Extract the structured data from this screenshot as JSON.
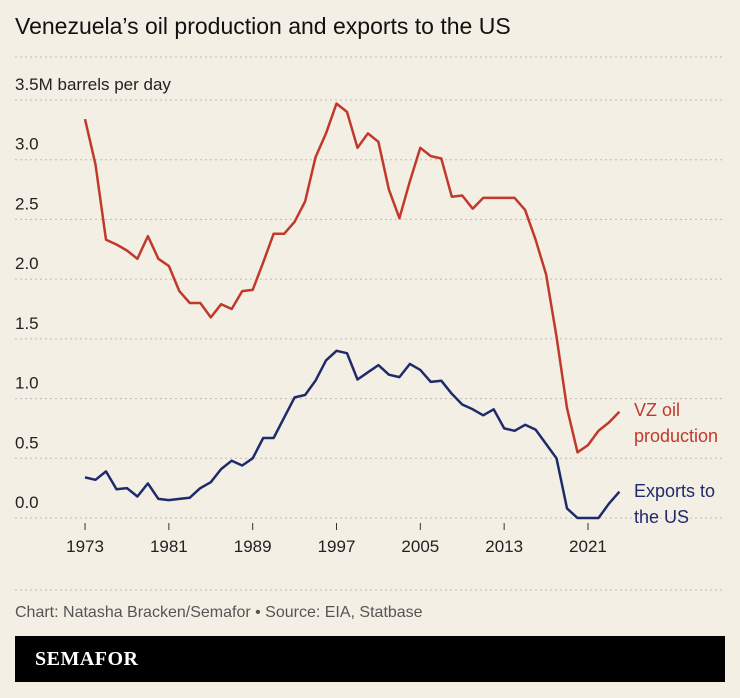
{
  "chart_data": {
    "type": "line",
    "title": "Venezuela’s oil production and exports to the US",
    "source": "Chart: Natasha Bracken/Semafor • Source: EIA, Statbase",
    "brand": "SEMAFOR",
    "x": [
      1973,
      1974,
      1975,
      1976,
      1977,
      1978,
      1979,
      1980,
      1981,
      1982,
      1983,
      1984,
      1985,
      1986,
      1987,
      1988,
      1989,
      1990,
      1991,
      1992,
      1993,
      1994,
      1995,
      1996,
      1997,
      1998,
      1999,
      2000,
      2001,
      2002,
      2003,
      2004,
      2005,
      2006,
      2007,
      2008,
      2009,
      2010,
      2011,
      2012,
      2013,
      2014,
      2015,
      2016,
      2017,
      2018,
      2019,
      2020,
      2021,
      2022,
      2023,
      2024
    ],
    "series": [
      {
        "name": "VZ oil production",
        "color": "#c0392b",
        "values": [
          3.34,
          2.96,
          2.33,
          2.29,
          2.24,
          2.17,
          2.36,
          2.17,
          2.11,
          1.9,
          1.8,
          1.8,
          1.68,
          1.79,
          1.75,
          1.9,
          1.91,
          2.14,
          2.38,
          2.38,
          2.48,
          2.65,
          3.02,
          3.22,
          3.47,
          3.4,
          3.1,
          3.22,
          3.15,
          2.75,
          2.51,
          2.82,
          3.1,
          3.03,
          3.01,
          2.69,
          2.7,
          2.59,
          2.68,
          2.68,
          2.68,
          2.68,
          2.58,
          2.33,
          2.04,
          1.52,
          0.92,
          0.55,
          0.61,
          0.73,
          0.8,
          0.89
        ]
      },
      {
        "name": "Exports to the US",
        "color": "#1f2a6b",
        "values": [
          0.34,
          0.32,
          0.39,
          0.24,
          0.25,
          0.18,
          0.29,
          0.16,
          0.15,
          0.16,
          0.17,
          0.25,
          0.3,
          0.41,
          0.48,
          0.44,
          0.5,
          0.67,
          0.67,
          0.84,
          1.01,
          1.03,
          1.15,
          1.32,
          1.4,
          1.38,
          1.16,
          1.22,
          1.28,
          1.2,
          1.18,
          1.29,
          1.24,
          1.14,
          1.15,
          1.04,
          0.95,
          0.91,
          0.86,
          0.91,
          0.75,
          0.73,
          0.78,
          0.74,
          0.62,
          0.5,
          0.08,
          0.0,
          0.0,
          0.0,
          0.12,
          0.22
        ]
      }
    ],
    "xlim": [
      1970,
      2029
    ],
    "xticks": [
      1973,
      1981,
      1989,
      1997,
      2005,
      2013,
      2021
    ],
    "ylim": [
      0,
      3.5
    ],
    "yticks": [
      {
        "value": 0,
        "label": "0.0"
      },
      0.5,
      {
        "value": 1,
        "label": "1.0"
      },
      1.5,
      {
        "value": 2,
        "label": "2.0"
      },
      2.5,
      {
        "value": 3,
        "label": "3.0"
      },
      {
        "value": 3.5,
        "label": "3.5M barrels per day"
      }
    ],
    "grid": true
  }
}
